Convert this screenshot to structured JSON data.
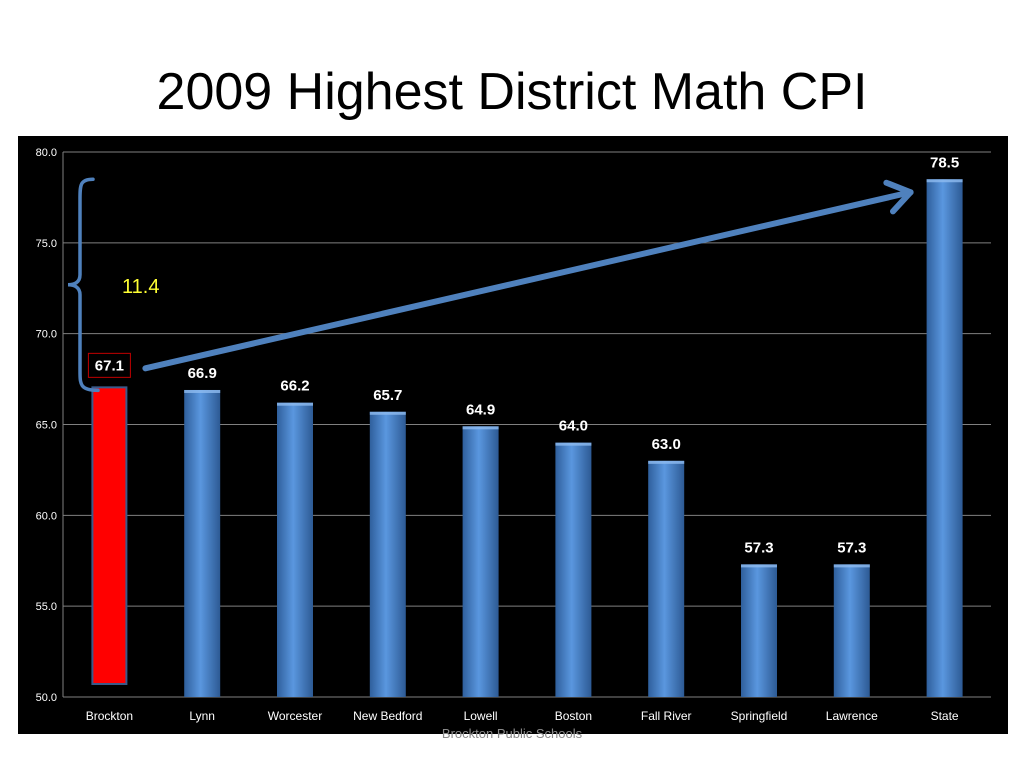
{
  "slide": {
    "title": "2009 Highest District Math CPI",
    "footer": "Brockton Public Schools"
  },
  "colors": {
    "background": "#000000",
    "bar_default": "#4a86cf",
    "bar_highlight": "#ff0000",
    "arrow": "#4f81bd",
    "annotation_text": "#ffff33",
    "gridline": "#808080",
    "axis_text": "#ffffff"
  },
  "chart_data": {
    "type": "bar",
    "title": "",
    "xlabel": "",
    "ylabel": "",
    "ylim": [
      50,
      80
    ],
    "ytick_step": 5,
    "ytick_labels": [
      "50.0",
      "55.0",
      "60.0",
      "65.0",
      "70.0",
      "75.0",
      "80.0"
    ],
    "grid": true,
    "categories": [
      "Brockton",
      "Lynn",
      "Worcester",
      "New Bedford",
      "Lowell",
      "Boston",
      "Fall River",
      "Springfield",
      "Lawrence",
      "State"
    ],
    "values": [
      67.1,
      66.9,
      66.2,
      65.7,
      64.9,
      64.0,
      63.0,
      57.3,
      57.3,
      78.5
    ],
    "value_labels": [
      "67.1",
      "66.9",
      "66.2",
      "65.7",
      "64.9",
      "64.0",
      "63.0",
      "57.3",
      "57.3",
      "78.5"
    ],
    "highlight_category": "Brockton",
    "annotations": {
      "gap_label": "11.4",
      "gap_from": 67.1,
      "gap_to": 78.5
    }
  }
}
